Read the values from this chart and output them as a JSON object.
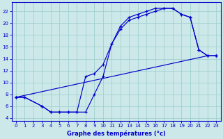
{
  "bg_color": "#cce8e8",
  "grid_color": "#99cccc",
  "line_color": "#0000cc",
  "xlabel": "Graphe des températures (°c)",
  "xlim_min": -0.5,
  "xlim_max": 23.5,
  "ylim_min": 3.5,
  "ylim_max": 23.5,
  "xticks": [
    0,
    1,
    2,
    3,
    4,
    5,
    6,
    7,
    8,
    9,
    10,
    11,
    12,
    13,
    14,
    15,
    16,
    17,
    18,
    19,
    20,
    21,
    22,
    23
  ],
  "yticks": [
    4,
    6,
    8,
    10,
    12,
    14,
    16,
    18,
    20,
    22
  ],
  "curve1_x": [
    0,
    1,
    3,
    4,
    5,
    6,
    7,
    8,
    9,
    10,
    11,
    12,
    13,
    14,
    15,
    16,
    17,
    18,
    19,
    20,
    21,
    22,
    23
  ],
  "curve1_y": [
    7.5,
    7.5,
    6.0,
    5.0,
    5.0,
    5.0,
    5.0,
    5.0,
    8.0,
    11.0,
    16.5,
    19.5,
    21.0,
    21.5,
    22.0,
    22.5,
    22.5,
    22.5,
    21.5,
    21.0,
    15.5,
    14.5,
    14.5
  ],
  "curve2_x": [
    0,
    1,
    3,
    4,
    5,
    6,
    7,
    8,
    9,
    10,
    11,
    12,
    13,
    14,
    15,
    16,
    17,
    18,
    19,
    20,
    21,
    22,
    23
  ],
  "curve2_y": [
    7.5,
    7.5,
    6.0,
    5.0,
    5.0,
    5.0,
    5.0,
    11.0,
    11.5,
    13.0,
    16.5,
    19.0,
    20.5,
    21.0,
    21.5,
    22.0,
    22.5,
    22.5,
    21.5,
    21.0,
    15.5,
    14.5,
    14.5
  ],
  "curve3_x": [
    0,
    22,
    23
  ],
  "curve3_y": [
    7.5,
    14.5,
    14.5
  ]
}
